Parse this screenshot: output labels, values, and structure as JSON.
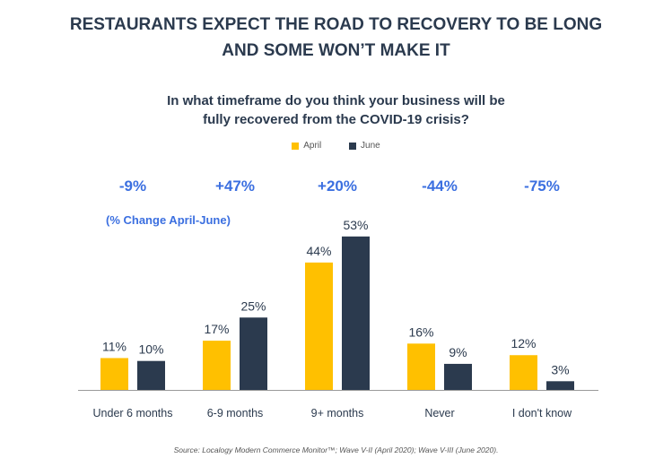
{
  "title": {
    "line1": "RESTAURANTS EXPECT THE ROAD TO RECOVERY TO BE LONG",
    "line2": "AND SOME WON’T MAKE IT"
  },
  "subtitle": {
    "line1": "In what timeframe do you think your business will be",
    "line2": "fully recovered from the COVID-19 crisis?"
  },
  "legend": [
    {
      "label": "April",
      "color": "#ffc000"
    },
    {
      "label": "June",
      "color": "#2b3a4e"
    }
  ],
  "changes": [
    "-9%",
    "+47%",
    "+20%",
    "-44%",
    "-75%"
  ],
  "change_note": "(% Change April-June)",
  "source": "Source: Localogy Modern Commerce Monitor™; Wave V-II (April 2020); Wave V-III (June 2020).",
  "chart_data": {
    "type": "bar",
    "categories": [
      "Under 6 months",
      "6-9 months",
      "9+ months",
      "Never",
      "I don't know"
    ],
    "series": [
      {
        "name": "April",
        "values": [
          11,
          17,
          44,
          16,
          12
        ],
        "color": "#ffc000"
      },
      {
        "name": "June",
        "values": [
          10,
          25,
          53,
          9,
          3
        ],
        "color": "#2b3a4e"
      }
    ],
    "value_suffix": "%",
    "ylim": [
      0,
      60
    ],
    "grid": false
  }
}
